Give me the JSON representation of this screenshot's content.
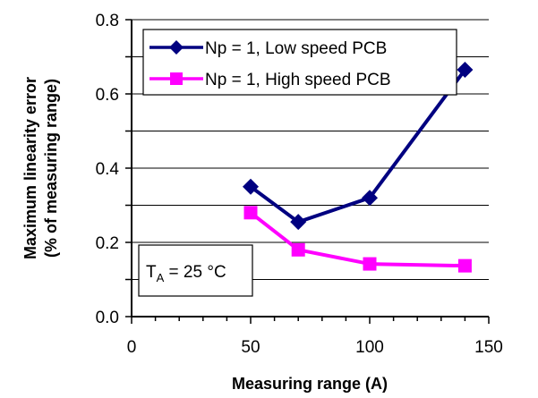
{
  "chart_data": {
    "type": "line",
    "title": "",
    "xlabel": "Measuring range (A)",
    "ylabel_line1": "Maximum linearity error",
    "ylabel_line2": "(% of measuring range)",
    "xlim": [
      0,
      150
    ],
    "ylim": [
      0,
      0.8
    ],
    "xticks": [
      0,
      50,
      100,
      150
    ],
    "xtick_labels": [
      "0",
      "50",
      "100",
      "150"
    ],
    "yticks": [
      0,
      0.2,
      0.4,
      0.6,
      0.8
    ],
    "ytick_labels": [
      "0.0",
      "0.2",
      "0.4",
      "0.6",
      "0.8"
    ],
    "grid": "horizontal",
    "legend_position": "top",
    "series": [
      {
        "name": "Np = 1, Low speed PCB",
        "color": "#000080",
        "marker": "diamond",
        "x": [
          50,
          70,
          100,
          140
        ],
        "y": [
          0.35,
          0.255,
          0.32,
          0.665
        ]
      },
      {
        "name": "Np = 1, High speed PCB",
        "color": "#ff00ff",
        "marker": "square",
        "x": [
          50,
          70,
          100,
          140
        ],
        "y": [
          0.28,
          0.18,
          0.142,
          0.137
        ]
      }
    ],
    "annotation": {
      "base": "T",
      "subscript": "A",
      "rest": " = 25 °C"
    }
  }
}
